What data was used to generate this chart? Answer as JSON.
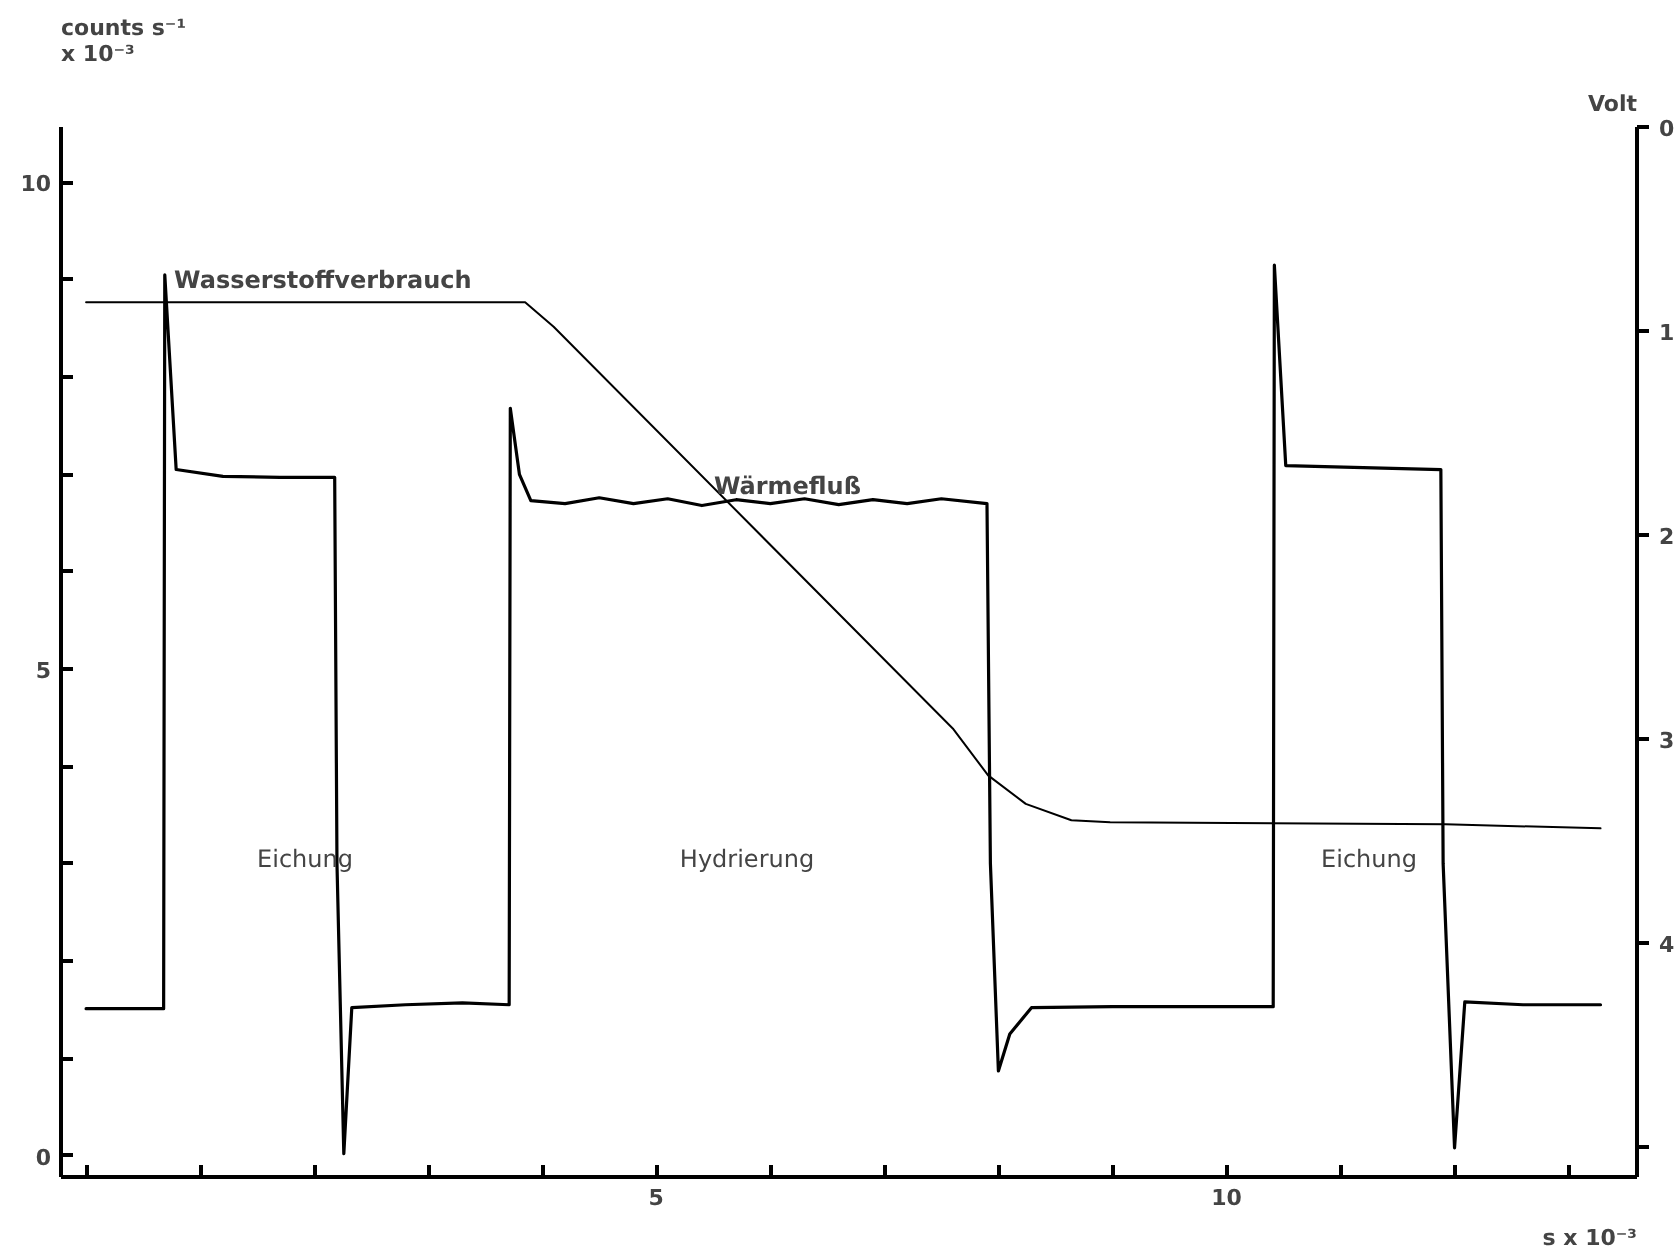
{
  "chart_data": {
    "type": "line",
    "xlabel": "s x 10⁻³",
    "ylabel": "counts s⁻¹\nx 10⁻³",
    "y2label": "Volt",
    "xlim": [
      -0.22,
      13.6
    ],
    "xticks": [
      {
        "value": 0,
        "label": null
      },
      {
        "value": 1,
        "label": null
      },
      {
        "value": 2,
        "label": null
      },
      {
        "value": 3,
        "label": null
      },
      {
        "value": 4,
        "label": null
      },
      5,
      {
        "value": 6,
        "label": null
      },
      {
        "value": 7,
        "label": null
      },
      {
        "value": 8,
        "label": null
      },
      {
        "value": 9,
        "label": null
      },
      10,
      {
        "value": 11,
        "label": null
      },
      {
        "value": 12,
        "label": null
      },
      {
        "value": 13,
        "label": null
      }
    ],
    "ylim": [
      -0.22,
      10.57
    ],
    "yticks": [
      0,
      {
        "value": 1,
        "label": null
      },
      {
        "value": 2,
        "label": null
      },
      {
        "value": 3,
        "label": null
      },
      {
        "value": 4,
        "label": null
      },
      5,
      {
        "value": 6,
        "label": null
      },
      {
        "value": 7,
        "label": null
      },
      {
        "value": 8,
        "label": null
      },
      {
        "value": 9,
        "label": null
      },
      10
    ],
    "y2lim": [
      5.15,
      0
    ],
    "y2ticks": [
      0,
      1,
      2,
      3,
      4,
      {
        "value": 5,
        "label": null
      }
    ],
    "grid": false,
    "marker": "none",
    "line_style": "solid",
    "series": [
      {
        "name": "Wärmefluß",
        "color": "#000000",
        "x": [
          0,
          0.68,
          0.69,
          0.79,
          1.2,
          1.7,
          2.18,
          2.2,
          2.26,
          2.33,
          2.8,
          3.3,
          3.71,
          3.72,
          3.8,
          3.9,
          4.2,
          4.5,
          4.8,
          5.1,
          5.4,
          5.7,
          6.0,
          6.3,
          6.6,
          6.9,
          7.2,
          7.5,
          7.9,
          7.93,
          8.0,
          8.1,
          8.29,
          9.0,
          9.8,
          10.41,
          10.42,
          10.52,
          11.2,
          11.88,
          11.9,
          12.0,
          12.09,
          12.6,
          13.28
        ],
        "values": [
          1.51,
          1.51,
          9.05,
          7.05,
          6.98,
          6.97,
          6.97,
          3.0,
          0.02,
          1.52,
          1.55,
          1.57,
          1.55,
          7.68,
          7.0,
          6.73,
          6.7,
          6.76,
          6.7,
          6.75,
          6.68,
          6.74,
          6.7,
          6.75,
          6.69,
          6.74,
          6.7,
          6.75,
          6.7,
          3.0,
          0.87,
          1.25,
          1.52,
          1.53,
          1.53,
          1.53,
          9.15,
          7.09,
          7.07,
          7.05,
          3.0,
          0.08,
          1.58,
          1.55,
          1.55
        ]
      },
      {
        "name": "Wasserstoffverbrauch",
        "color": "#000000",
        "axis": "y2",
        "x": [
          0,
          3.85,
          4.1,
          7.6,
          7.91,
          8.24,
          8.64,
          8.98,
          11.92,
          13.28
        ],
        "values": [
          0.86,
          0.86,
          0.98,
          2.95,
          3.18,
          3.32,
          3.4,
          3.41,
          3.42,
          3.44
        ]
      }
    ],
    "annotations": [
      "Eichung",
      "Hydrierung",
      "Eichung"
    ]
  }
}
